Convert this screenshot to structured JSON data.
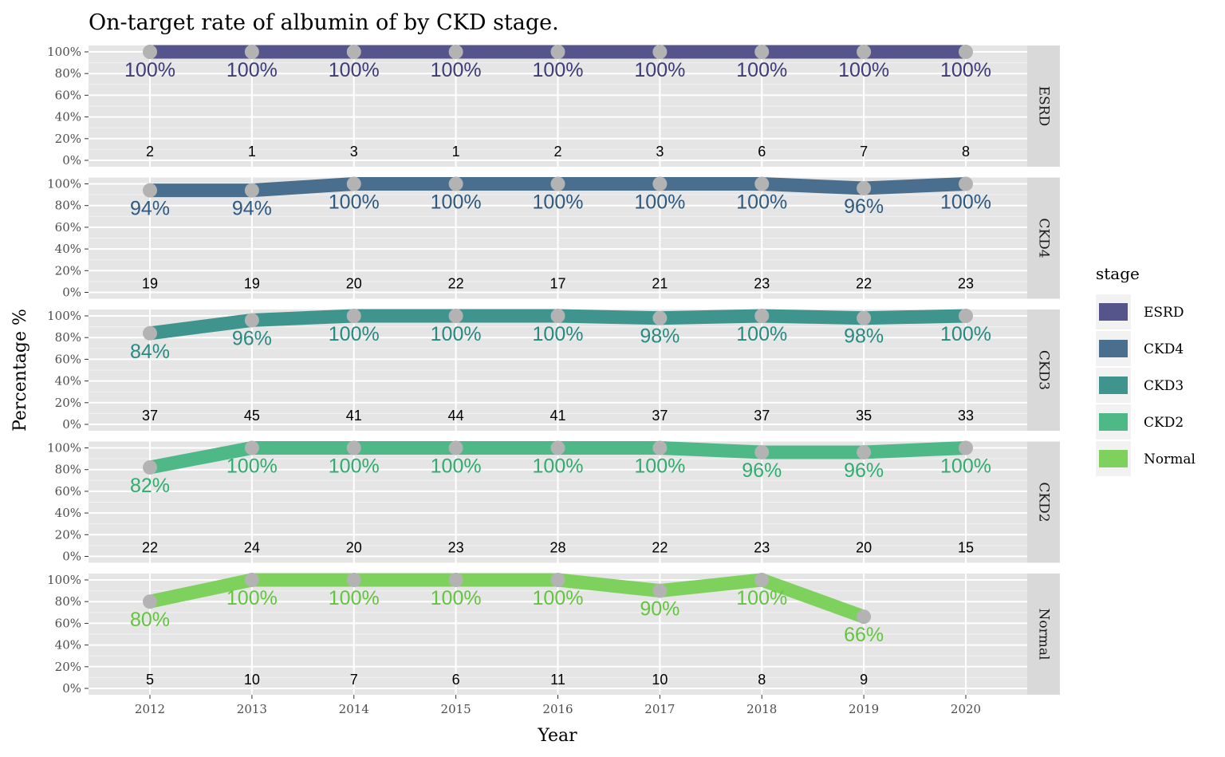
{
  "chart_data": {
    "type": "line",
    "title": "On-target rate of albumin of  by CKD stage.",
    "xlabel": "Year",
    "ylabel": "Percentage %",
    "x": [
      2012,
      2013,
      2014,
      2015,
      2016,
      2017,
      2018,
      2019,
      2020
    ],
    "y_ticks": [
      "0%",
      "20%",
      "40%",
      "60%",
      "80%",
      "100%"
    ],
    "ylim": [
      0,
      100
    ],
    "grid": true,
    "legend": {
      "title": "stage",
      "placement": "right",
      "entries": [
        "ESRD",
        "CKD4",
        "CKD3",
        "CKD2",
        "Normal"
      ]
    },
    "series": [
      {
        "name": "ESRD",
        "color": "#55558c",
        "label_color": "#3c3c78",
        "values": [
          100,
          100,
          100,
          100,
          100,
          100,
          100,
          100,
          100
        ],
        "labels": [
          "100%",
          "100%",
          "100%",
          "100%",
          "100%",
          "100%",
          "100%",
          "100%",
          "100%"
        ],
        "counts": [
          "2",
          "1",
          "3",
          "1",
          "2",
          "3",
          "6",
          "7",
          "8"
        ]
      },
      {
        "name": "CKD4",
        "color": "#4a6f8e",
        "label_color": "#2f5a80",
        "values": [
          94,
          94,
          100,
          100,
          100,
          100,
          100,
          96,
          100
        ],
        "labels": [
          "94%",
          "94%",
          "100%",
          "100%",
          "100%",
          "100%",
          "100%",
          "96%",
          "100%"
        ],
        "counts": [
          "19",
          "19",
          "20",
          "22",
          "17",
          "21",
          "23",
          "22",
          "23"
        ]
      },
      {
        "name": "CKD3",
        "color": "#3f958e",
        "label_color": "#278a80",
        "values": [
          84,
          96,
          100,
          100,
          100,
          98,
          100,
          98,
          100
        ],
        "labels": [
          "84%",
          "96%",
          "100%",
          "100%",
          "100%",
          "98%",
          "100%",
          "98%",
          "100%"
        ],
        "counts": [
          "37",
          "45",
          "41",
          "44",
          "41",
          "37",
          "37",
          "35",
          "33"
        ]
      },
      {
        "name": "CKD2",
        "color": "#4eb886",
        "label_color": "#2fad6e",
        "values": [
          82,
          100,
          100,
          100,
          100,
          100,
          96,
          96,
          100
        ],
        "labels": [
          "82%",
          "100%",
          "100%",
          "100%",
          "100%",
          "100%",
          "96%",
          "96%",
          "100%"
        ],
        "counts": [
          "22",
          "24",
          "20",
          "23",
          "28",
          "22",
          "23",
          "20",
          "15"
        ]
      },
      {
        "name": "Normal",
        "color": "#7fd15d",
        "label_color": "#62c53e",
        "values": [
          80,
          100,
          100,
          100,
          100,
          90,
          100,
          66,
          null
        ],
        "labels": [
          "80%",
          "100%",
          "100%",
          "100%",
          "100%",
          "90%",
          "100%",
          "66%",
          ""
        ],
        "counts": [
          "5",
          "10",
          "7",
          "6",
          "11",
          "10",
          "8",
          "9",
          ""
        ]
      }
    ]
  }
}
